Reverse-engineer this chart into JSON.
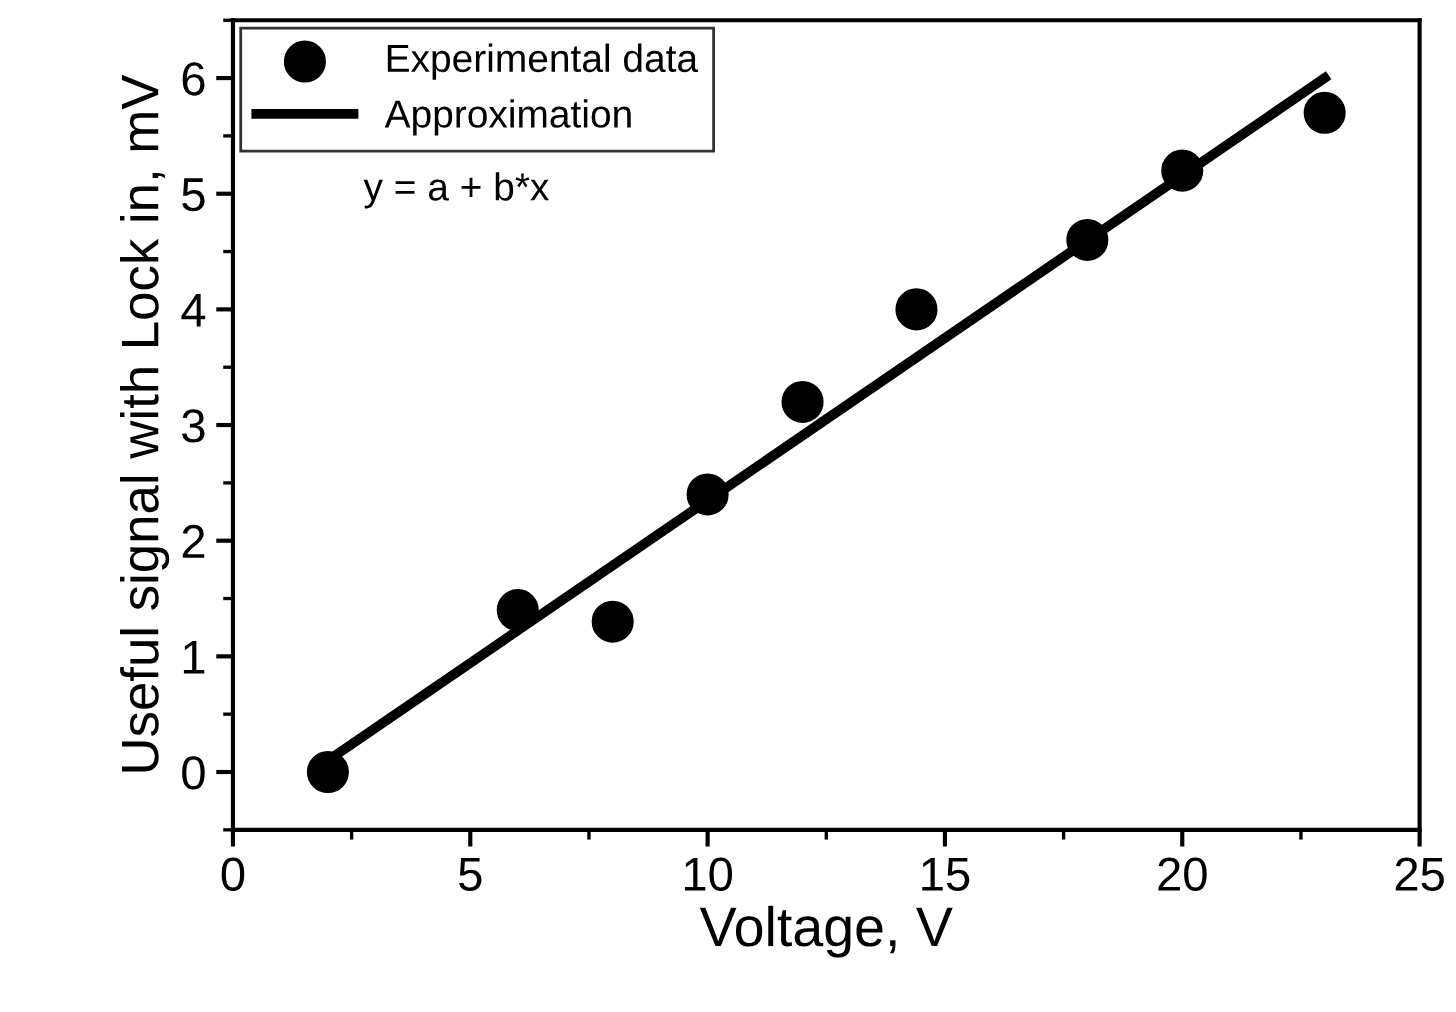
{
  "chart_data": {
    "type": "scatter",
    "xlabel": "Voltage, V",
    "ylabel": "Useful signal with Lock in, mV",
    "series": [
      {
        "name": "Experimental data",
        "color": "#000000",
        "marker": "circle",
        "x": [
          2,
          6,
          8,
          10,
          12,
          14.4,
          18,
          20,
          23
        ],
        "values": [
          0,
          1.4,
          1.3,
          2.4,
          3.2,
          4.0,
          4.6,
          5.2,
          5.7
        ]
      },
      {
        "name": "Approximation",
        "type": "line",
        "color": "#000000",
        "line_style": "solid",
        "x": [
          2,
          23
        ],
        "values": [
          0.1,
          6.0
        ]
      }
    ],
    "annotations": [
      "y = a + b*x"
    ],
    "xlim": [
      0,
      25
    ],
    "xticks": [
      0,
      5,
      10,
      15,
      20,
      25
    ],
    "ylim": [
      -0.5,
      6.5
    ],
    "yticks": [
      0,
      1,
      2,
      3,
      4,
      5,
      6
    ],
    "legend": "top left",
    "grid": false
  }
}
